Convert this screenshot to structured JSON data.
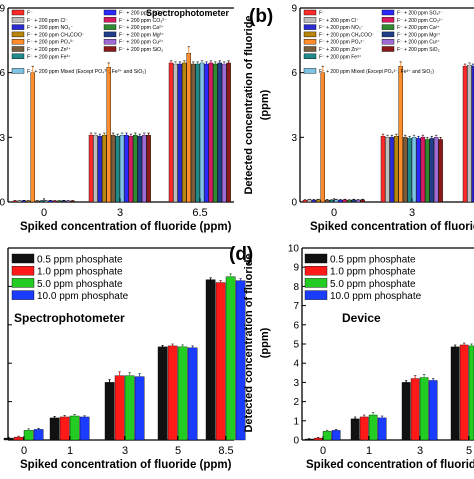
{
  "figure": {
    "panel_a_label": "(a)",
    "panel_b_label": "(b)",
    "panel_c_label": "(c)",
    "panel_d_label": "(d)"
  },
  "chart_data": [
    {
      "id": "a",
      "type": "bar",
      "title": "Spectrophotometer",
      "xlabel": "Spiked concentration of fluoride (ppm)",
      "ylabel": "",
      "ylim": [
        0,
        9
      ],
      "yticks": [
        "0",
        "3",
        "6",
        "9"
      ],
      "categories": [
        "0",
        "3",
        "6.5"
      ],
      "legend_position": "top-left",
      "series": [
        {
          "name": "F⁻",
          "color": "#ff2a2a",
          "values": [
            0.05,
            3.1,
            6.45
          ],
          "errors": [
            0.02,
            0.1,
            0.1
          ]
        },
        {
          "name": "F⁻ + 200 ppm Cl⁻",
          "color": "#bdbdbd",
          "values": [
            0.05,
            3.1,
            6.4
          ],
          "errors": [
            0.02,
            0.1,
            0.1
          ]
        },
        {
          "name": "F⁻ + 200 ppm NO₃⁻",
          "color": "#2b2bd6",
          "values": [
            0.06,
            3.05,
            6.4
          ],
          "errors": [
            0.02,
            0.1,
            0.1
          ]
        },
        {
          "name": "F⁻ + 200 ppm CH₃COO⁻",
          "color": "#b8860b",
          "values": [
            0.05,
            3.1,
            6.45
          ],
          "errors": [
            0.02,
            0.1,
            0.1
          ]
        },
        {
          "name": "F⁻ + 200 ppm PO₄³⁻",
          "color": "#ff8c2a",
          "values": [
            6.0,
            6.25,
            6.9
          ],
          "errors": [
            0.3,
            0.2,
            0.3
          ]
        },
        {
          "name": "F⁻ + 200 ppm Zn²⁺",
          "color": "#7a5c3a",
          "values": [
            0.05,
            3.1,
            6.4
          ],
          "errors": [
            0.02,
            0.1,
            0.1
          ]
        },
        {
          "name": "F⁻ + 200 ppm Fe³⁺",
          "color": "#1f8a8a",
          "values": [
            0.05,
            3.05,
            6.4
          ],
          "errors": [
            0.02,
            0.1,
            0.1
          ]
        },
        {
          "name": "F⁻ + 200 ppm Mixed (Except PO₄³⁻, Fe³⁺ and SiO₂)",
          "color": "#7cc3e6",
          "values": [
            0.05,
            3.1,
            6.45
          ],
          "errors": [
            0.02,
            0.1,
            0.1
          ]
        },
        {
          "name": "F⁻ + 200 ppm SO₄²⁻",
          "color": "#2a2aff",
          "values": [
            0.06,
            3.1,
            6.4
          ],
          "errors": [
            0.02,
            0.1,
            0.1
          ]
        },
        {
          "name": "F⁻ + 200 ppm CO₃²⁻",
          "color": "#d81b60",
          "values": [
            0.05,
            3.05,
            6.45
          ],
          "errors": [
            0.02,
            0.1,
            0.1
          ]
        },
        {
          "name": "F⁻ + 200 ppm Ca²⁺",
          "color": "#2e8b2e",
          "values": [
            0.05,
            3.1,
            6.4
          ],
          "errors": [
            0.02,
            0.1,
            0.1
          ]
        },
        {
          "name": "F⁻ + 200 ppm Mg²⁺",
          "color": "#1f3f8a",
          "values": [
            0.06,
            3.05,
            6.45
          ],
          "errors": [
            0.02,
            0.1,
            0.1
          ]
        },
        {
          "name": "F⁻ + 200 ppm Cu²⁺",
          "color": "#9e6bd6",
          "values": [
            0.05,
            3.1,
            6.4
          ],
          "errors": [
            0.02,
            0.1,
            0.1
          ]
        },
        {
          "name": "F⁻ + 200 ppm SiO₂",
          "color": "#8a1a1a",
          "values": [
            0.05,
            3.1,
            6.45
          ],
          "errors": [
            0.02,
            0.1,
            0.1
          ]
        }
      ]
    },
    {
      "id": "b",
      "type": "bar",
      "title": "",
      "xlabel": "Spiked concentration of fluoride (p",
      "ylabel_lines": [
        "Detected concentration of fluoride",
        "(ppm)"
      ],
      "ylim": [
        0,
        9
      ],
      "yticks": [
        "0",
        "3",
        "6",
        "9"
      ],
      "categories": [
        "0",
        "3",
        ""
      ],
      "legend_position": "top-left",
      "series": [
        {
          "name": "F⁻",
          "color": "#ff2a2a",
          "values": [
            0.08,
            3.05,
            6.3
          ],
          "errors": [
            0.03,
            0.1,
            0.1
          ]
        },
        {
          "name": "F⁻ + 200 ppm Cl⁻",
          "color": "#bdbdbd",
          "values": [
            0.1,
            3.0,
            6.35
          ],
          "errors": [
            0.03,
            0.1,
            0.1
          ]
        },
        {
          "name": "F⁻ + 200 ppm NO₃⁻",
          "color": "#2b2bd6",
          "values": [
            0.09,
            3.0,
            6.3
          ],
          "errors": [
            0.03,
            0.1,
            0.1
          ]
        },
        {
          "name": "F⁻ + 200 ppm CH₃COO⁻",
          "color": "#b8860b",
          "values": [
            0.1,
            3.05,
            6.35
          ],
          "errors": [
            0.03,
            0.1,
            0.1
          ]
        },
        {
          "name": "F⁻ + 200 ppm PO₄³⁻",
          "color": "#ff8c2a",
          "values": [
            6.0,
            6.3,
            6.6
          ],
          "errors": [
            0.3,
            0.2,
            0.2
          ]
        },
        {
          "name": "F⁻ + 200 ppm Zn²⁺",
          "color": "#7a5c3a",
          "values": [
            0.09,
            3.0,
            6.3
          ],
          "errors": [
            0.03,
            0.1,
            0.1
          ]
        },
        {
          "name": "F⁻ + 200 ppm Fe³⁺",
          "color": "#1f8a8a",
          "values": [
            0.08,
            2.95,
            6.3
          ],
          "errors": [
            0.03,
            0.1,
            0.1
          ]
        },
        {
          "name": "F⁻ + 200 ppm Mixed (Except PO₄³⁻, Fe³⁺ and SiO₂)",
          "color": "#7cc3e6",
          "values": [
            0.1,
            3.0,
            6.35
          ],
          "errors": [
            0.03,
            0.1,
            0.1
          ]
        },
        {
          "name": "F⁻ + 200 ppm SO₄²⁻",
          "color": "#2a2aff",
          "values": [
            0.09,
            2.95,
            6.3
          ],
          "errors": [
            0.03,
            0.1,
            0.1
          ]
        },
        {
          "name": "F⁻ + 200 ppm CO₃²⁻",
          "color": "#d81b60",
          "values": [
            0.1,
            3.0,
            6.35
          ],
          "errors": [
            0.03,
            0.1,
            0.1
          ]
        },
        {
          "name": "F⁻ + 200 ppm Ca²⁺",
          "color": "#2e8b2e",
          "values": [
            0.08,
            2.9,
            6.3
          ],
          "errors": [
            0.03,
            0.1,
            0.1
          ]
        },
        {
          "name": "F⁻ + 200 ppm Mg²⁺",
          "color": "#1f3f8a",
          "values": [
            0.1,
            2.95,
            6.35
          ],
          "errors": [
            0.03,
            0.1,
            0.1
          ]
        },
        {
          "name": "F⁻ + 200 ppm Cu²⁺",
          "color": "#9e6bd6",
          "values": [
            0.09,
            3.0,
            6.3
          ],
          "errors": [
            0.03,
            0.1,
            0.1
          ]
        },
        {
          "name": "F⁻ + 200 ppm SiO₂",
          "color": "#8a1a1a",
          "values": [
            0.1,
            2.9,
            6.35
          ],
          "errors": [
            0.03,
            0.1,
            0.1
          ]
        }
      ]
    },
    {
      "id": "c",
      "type": "bar",
      "title": "Spectrophotometer",
      "xlabel": "Spiked concentration of fluoride (ppm)",
      "ylabel": "",
      "ylim": [
        0,
        10
      ],
      "yticks": [
        "",
        "",
        "",
        "",
        "",
        ""
      ],
      "categories": [
        "0",
        "1",
        "3",
        "5",
        "8.5"
      ],
      "legend_position": "top-left",
      "series": [
        {
          "name": "0.5 ppm phosphate",
          "color": "#111111",
          "values": [
            0.1,
            1.15,
            3.0,
            4.85,
            8.35
          ],
          "errors": [
            0.05,
            0.08,
            0.15,
            0.08,
            0.1
          ]
        },
        {
          "name": "1.0 ppm phosphate",
          "color": "#ff1a1a",
          "values": [
            0.15,
            1.2,
            3.35,
            4.9,
            8.2
          ],
          "errors": [
            0.05,
            0.08,
            0.2,
            0.1,
            0.1
          ]
        },
        {
          "name": "5.0 ppm phosphate",
          "color": "#22cc22",
          "values": [
            0.5,
            1.25,
            3.35,
            4.85,
            8.5
          ],
          "errors": [
            0.08,
            0.08,
            0.15,
            0.1,
            0.15
          ]
        },
        {
          "name": "10.0 ppm phosphate",
          "color": "#1a3cff",
          "values": [
            0.55,
            1.2,
            3.3,
            4.8,
            8.3
          ],
          "errors": [
            0.06,
            0.06,
            0.15,
            0.1,
            0.1
          ]
        }
      ]
    },
    {
      "id": "d",
      "type": "bar",
      "title": "Device",
      "xlabel": "Spiked concentration of fluoride",
      "ylabel_lines": [
        "Detected concentration of fluoride",
        "(ppm)"
      ],
      "ylim": [
        0,
        10
      ],
      "yticks": [
        "0",
        "1",
        "2",
        "3",
        "4",
        "5",
        "6",
        "7",
        "8",
        "9",
        "10"
      ],
      "categories": [
        "0",
        "1",
        "3",
        "5"
      ],
      "legend_position": "top-left",
      "series": [
        {
          "name": "0.5 ppm phosphate",
          "color": "#111111",
          "values": [
            0.05,
            1.1,
            3.0,
            4.85
          ],
          "errors": [
            0.03,
            0.1,
            0.1,
            0.1
          ]
        },
        {
          "name": "1.0 ppm phosphate",
          "color": "#ff1a1a",
          "values": [
            0.1,
            1.2,
            3.2,
            4.95
          ],
          "errors": [
            0.04,
            0.1,
            0.15,
            0.1
          ]
        },
        {
          "name": "5.0 ppm phosphate",
          "color": "#22cc22",
          "values": [
            0.45,
            1.3,
            3.25,
            4.9
          ],
          "errors": [
            0.06,
            0.12,
            0.15,
            0.1
          ]
        },
        {
          "name": "10.0 ppm phosphate",
          "color": "#1a3cff",
          "values": [
            0.5,
            1.15,
            3.1,
            4.85
          ],
          "errors": [
            0.05,
            0.1,
            0.1,
            0.1
          ]
        }
      ]
    }
  ]
}
